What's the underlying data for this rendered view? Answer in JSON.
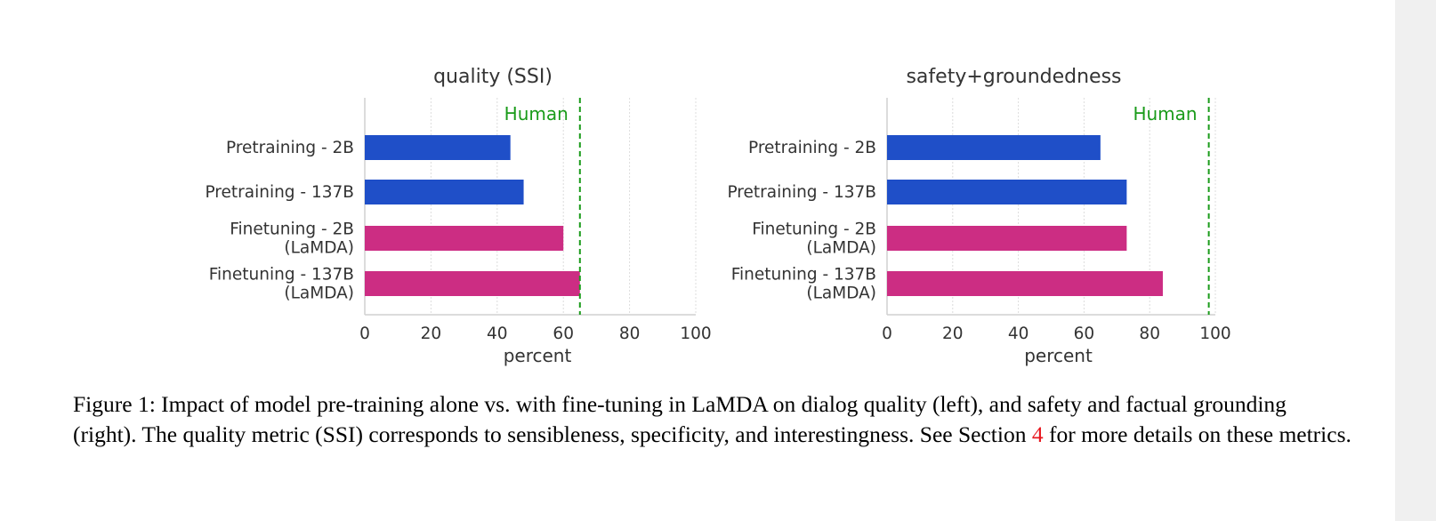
{
  "chart_data": [
    {
      "type": "bar",
      "orientation": "horizontal",
      "title": "quality (SSI)",
      "categories": [
        [
          "Pretraining - 2B"
        ],
        [
          "Pretraining - 137B"
        ],
        [
          "Finetuning - 2B",
          "(LaMDA)"
        ],
        [
          "Finetuning - 137B",
          "(LaMDA)"
        ]
      ],
      "values": [
        44,
        48,
        60,
        65
      ],
      "bar_colors": [
        "#1f4fc8",
        "#1f4fc8",
        "#cc2d83",
        "#cc2d83"
      ],
      "xlabel": "percent",
      "ylabel": "",
      "xlim": [
        0,
        100
      ],
      "xticks": [
        0,
        20,
        40,
        60,
        80,
        100
      ],
      "grid": "vertical",
      "reference_line": {
        "label": "Human",
        "value": 65,
        "color": "#1a9b1a",
        "style": "dashed"
      }
    },
    {
      "type": "bar",
      "orientation": "horizontal",
      "title": "safety+groundedness",
      "categories": [
        [
          "Pretraining - 2B"
        ],
        [
          "Pretraining - 137B"
        ],
        [
          "Finetuning - 2B",
          "(LaMDA)"
        ],
        [
          "Finetuning - 137B",
          "(LaMDA)"
        ]
      ],
      "values": [
        65,
        73,
        73,
        84
      ],
      "bar_colors": [
        "#1f4fc8",
        "#1f4fc8",
        "#cc2d83",
        "#cc2d83"
      ],
      "xlabel": "percent",
      "ylabel": "",
      "xlim": [
        0,
        100
      ],
      "xticks": [
        0,
        20,
        40,
        60,
        80,
        100
      ],
      "grid": "vertical",
      "reference_line": {
        "label": "Human",
        "value": 98,
        "color": "#1a9b1a",
        "style": "dashed"
      }
    }
  ],
  "caption": {
    "prefix": "Figure 1: Impact of model pre-training alone vs. with fine-tuning in LaMDA on dialog quality (left), and safety and factual grounding (right). The quality metric (SSI) corresponds to sensibleness, specificity, and interestingness. See Section ",
    "ref": "4",
    "suffix": " for more details on these metrics."
  }
}
